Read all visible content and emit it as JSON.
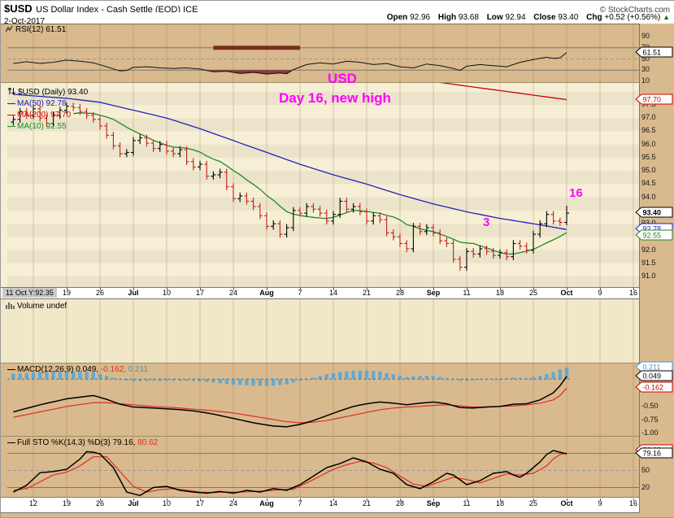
{
  "header": {
    "symbol": "$USD",
    "title": "US Dollar Index - Cash Settle (EOD) ICE",
    "date": "2-Oct-2017",
    "copyright": "© StockCharts.com"
  },
  "quote": {
    "open_label": "Open",
    "open": "92.96",
    "high_label": "High",
    "high": "93.68",
    "low_label": "Low",
    "low": "92.94",
    "close_label": "Close",
    "close": "93.40",
    "chg_label": "Chg",
    "chg": "+0.52 (+0.56%)",
    "direction": "▲"
  },
  "legends": {
    "rsi": "RSI(12) 61.51",
    "price_title": "$USD (Daily) 93.40",
    "ma50": "MA(50) 92.78",
    "ma200": "MA(200) 97.70",
    "ma10": "MA(10) 92.55",
    "volume": "Volume undef",
    "macd_main": "MACD(12,26,9) 0.049,",
    "macd_signal": "-0.162,",
    "macd_hist": "0.211",
    "sto_main": "Full STO %K(14,3) %D(3) 79.16,",
    "sto_d": "80.62"
  },
  "annotations": {
    "usd": "USD",
    "day16": "Day 16, new high",
    "cycle_low": "3",
    "cycle_high": "16",
    "color": "#FF00FF"
  },
  "x_axis": {
    "tooltip": "11 Oct Y:92.35",
    "labels": [
      "12",
      "19",
      "26",
      "Jul",
      "10",
      "17",
      "24",
      "Aug",
      "7",
      "14",
      "21",
      "28",
      "Sep",
      "11",
      "18",
      "25",
      "Oct",
      "9",
      "16"
    ],
    "month_labels": [
      "Jul",
      "Aug",
      "Sep",
      "Oct"
    ]
  },
  "colors": {
    "tan": "#D9BA8E",
    "cream": "#F6EFD5",
    "cream2": "#F1E8C9",
    "up": "#000000",
    "down": "#C41E1E",
    "ma50": "#2222BB",
    "ma200": "#CC0000",
    "ma10": "#1F8B1F",
    "hist": "#66A8CE",
    "hist_zero": "#3377AA",
    "macd_line": "#000000",
    "signal_line": "#D93025",
    "k_line": "#000000",
    "d_line": "#D93025",
    "rsi_line": "#111111",
    "rsi_fill": "#8B3A3A",
    "annotation_bar": "#7B2B23",
    "grid": "rgba(140,100,50,0.30)",
    "level_line": "#777777",
    "mid_dash": "#999999",
    "callout_black": "#000000",
    "callout_red": "#CC0000",
    "callout_blue": "#2222BB",
    "callout_green": "#1F8B1F",
    "callout_hist": "#4D94C2"
  },
  "chart_data": [
    {
      "panel": "rsi",
      "type": "line",
      "indicator": "RSI(12)",
      "last_value": 61.51,
      "yticks": [
        "90",
        "70",
        "50",
        "30",
        "10"
      ],
      "levels": {
        "overbought": 70,
        "midline": 50,
        "oversold": 30
      },
      "points": [
        [
          0,
          42
        ],
        [
          2,
          45
        ],
        [
          4,
          42
        ],
        [
          6,
          44
        ],
        [
          8,
          48
        ],
        [
          10,
          46
        ],
        [
          12,
          43
        ],
        [
          14,
          36
        ],
        [
          16,
          28.5
        ],
        [
          17,
          29.5
        ],
        [
          18,
          35
        ],
        [
          20,
          36
        ],
        [
          22,
          34
        ],
        [
          24,
          33
        ],
        [
          26,
          34
        ],
        [
          28,
          32
        ],
        [
          30,
          27
        ],
        [
          32,
          28
        ],
        [
          34,
          24
        ],
        [
          36,
          26
        ],
        [
          38,
          23
        ],
        [
          40,
          25
        ],
        [
          41,
          23.5
        ],
        [
          42,
          31
        ],
        [
          44,
          40
        ],
        [
          46,
          43
        ],
        [
          48,
          41
        ],
        [
          50,
          46
        ],
        [
          52,
          44
        ],
        [
          54,
          40
        ],
        [
          56,
          42
        ],
        [
          58,
          36
        ],
        [
          60,
          34
        ],
        [
          62,
          41
        ],
        [
          64,
          38
        ],
        [
          66,
          33
        ],
        [
          67,
          29.5
        ],
        [
          68,
          37
        ],
        [
          70,
          40
        ],
        [
          72,
          38
        ],
        [
          74,
          36
        ],
        [
          76,
          44
        ],
        [
          78,
          49
        ],
        [
          80,
          53
        ],
        [
          81,
          51
        ],
        [
          82,
          52
        ],
        [
          83,
          61.5
        ]
      ],
      "annotation_bar": {
        "from_idx": 30,
        "to_idx": 43,
        "level": 70
      },
      "callouts": [
        {
          "text": "61.51",
          "value": 61.51,
          "color_key": "callout_black"
        }
      ]
    },
    {
      "panel": "price",
      "type": "ohlc",
      "symbol": "$USD",
      "timeframe": "Daily",
      "last_value": 93.4,
      "yticks": [
        "97.5",
        "97.0",
        "96.5",
        "96.0",
        "95.5",
        "95.0",
        "94.5",
        "94.0",
        "93.0",
        "92.0",
        "91.5",
        "91.0"
      ],
      "first_open": 96.85,
      "closes": [
        96.95,
        97.25,
        97.1,
        97.35,
        97.0,
        96.8,
        97.1,
        97.3,
        97.45,
        97.4,
        97.25,
        97.1,
        96.95,
        96.7,
        96.35,
        95.95,
        95.65,
        95.7,
        96.15,
        96.25,
        96.05,
        95.85,
        96.0,
        95.75,
        95.65,
        95.8,
        95.35,
        95.15,
        95.25,
        94.8,
        94.85,
        94.95,
        94.4,
        93.95,
        94.05,
        93.85,
        93.65,
        93.3,
        92.9,
        93.0,
        92.6,
        92.85,
        93.5,
        93.4,
        93.65,
        93.55,
        93.4,
        93.1,
        93.35,
        93.85,
        93.55,
        93.65,
        93.45,
        93.1,
        93.3,
        93.15,
        92.65,
        92.5,
        92.25,
        92.05,
        92.9,
        92.7,
        92.85,
        92.65,
        92.35,
        92.25,
        91.65,
        91.35,
        91.95,
        91.85,
        92.05,
        91.95,
        91.8,
        91.9,
        91.75,
        92.25,
        92.15,
        92.0,
        92.6,
        93.0,
        93.35,
        93.1,
        93.05,
        93.4
      ],
      "last_bar": {
        "open": 92.96,
        "high": 93.68,
        "low": 92.94,
        "close": 93.4
      },
      "ma50_points": [
        [
          0,
          97.9
        ],
        [
          8,
          97.75
        ],
        [
          13,
          97.6
        ],
        [
          18,
          97.3
        ],
        [
          23,
          97.0
        ],
        [
          28,
          96.6
        ],
        [
          33,
          96.15
        ],
        [
          38,
          95.7
        ],
        [
          43,
          95.25
        ],
        [
          48,
          94.85
        ],
        [
          53,
          94.5
        ],
        [
          58,
          94.1
        ],
        [
          63,
          93.75
        ],
        [
          68,
          93.45
        ],
        [
          73,
          93.2
        ],
        [
          78,
          93.0
        ],
        [
          83,
          92.78
        ]
      ],
      "ma200_points": [
        [
          64,
          98.35
        ],
        [
          83,
          97.7
        ]
      ],
      "ma10_period": 10,
      "callouts": [
        {
          "text": "97.70",
          "value": 97.7,
          "color_key": "callout_red"
        },
        {
          "text": "93.40",
          "value": 93.4,
          "color_key": "callout_black",
          "bold": true
        },
        {
          "text": "92.78",
          "value": 92.78,
          "color_key": "callout_blue"
        },
        {
          "text": "92.55",
          "value": 92.55,
          "color_key": "callout_green"
        }
      ]
    },
    {
      "panel": "volume",
      "type": "empty",
      "status": "undef"
    },
    {
      "panel": "macd",
      "type": "macd",
      "params": "12,26,9",
      "last_values": {
        "macd": 0.049,
        "signal": -0.162,
        "histogram": 0.211
      },
      "yticks": [
        "-0.50",
        "-0.75",
        "-1.00"
      ],
      "macd_points": [
        [
          0,
          -0.6
        ],
        [
          4,
          -0.47
        ],
        [
          8,
          -0.36
        ],
        [
          12,
          -0.3
        ],
        [
          14,
          -0.37
        ],
        [
          16,
          -0.46
        ],
        [
          18,
          -0.51
        ],
        [
          21,
          -0.53
        ],
        [
          24,
          -0.55
        ],
        [
          27,
          -0.58
        ],
        [
          30,
          -0.64
        ],
        [
          33,
          -0.72
        ],
        [
          36,
          -0.8
        ],
        [
          39,
          -0.86
        ],
        [
          41,
          -0.875
        ],
        [
          43,
          -0.83
        ],
        [
          45,
          -0.76
        ],
        [
          47,
          -0.67
        ],
        [
          49,
          -0.58
        ],
        [
          51,
          -0.5
        ],
        [
          53,
          -0.45
        ],
        [
          55,
          -0.42
        ],
        [
          57,
          -0.44
        ],
        [
          59,
          -0.47
        ],
        [
          61,
          -0.44
        ],
        [
          63,
          -0.42
        ],
        [
          65,
          -0.45
        ],
        [
          67,
          -0.52
        ],
        [
          69,
          -0.53
        ],
        [
          71,
          -0.51
        ],
        [
          73,
          -0.5
        ],
        [
          75,
          -0.46
        ],
        [
          77,
          -0.45
        ],
        [
          79,
          -0.38
        ],
        [
          81,
          -0.25
        ],
        [
          82,
          -0.12
        ],
        [
          83,
          0.049
        ]
      ],
      "signal_points": [
        [
          0,
          -0.7
        ],
        [
          4,
          -0.6
        ],
        [
          8,
          -0.5
        ],
        [
          12,
          -0.43
        ],
        [
          14,
          -0.43
        ],
        [
          16,
          -0.45
        ],
        [
          18,
          -0.47
        ],
        [
          21,
          -0.5
        ],
        [
          24,
          -0.52
        ],
        [
          27,
          -0.55
        ],
        [
          30,
          -0.58
        ],
        [
          33,
          -0.62
        ],
        [
          36,
          -0.68
        ],
        [
          39,
          -0.74
        ],
        [
          41,
          -0.78
        ],
        [
          43,
          -0.8
        ],
        [
          45,
          -0.79
        ],
        [
          47,
          -0.76
        ],
        [
          49,
          -0.71
        ],
        [
          51,
          -0.66
        ],
        [
          53,
          -0.61
        ],
        [
          55,
          -0.56
        ],
        [
          57,
          -0.53
        ],
        [
          59,
          -0.51
        ],
        [
          61,
          -0.5
        ],
        [
          63,
          -0.48
        ],
        [
          65,
          -0.47
        ],
        [
          67,
          -0.49
        ],
        [
          69,
          -0.51
        ],
        [
          71,
          -0.51
        ],
        [
          73,
          -0.5
        ],
        [
          75,
          -0.49
        ],
        [
          77,
          -0.47
        ],
        [
          79,
          -0.44
        ],
        [
          81,
          -0.38
        ],
        [
          82,
          -0.3
        ],
        [
          83,
          -0.162
        ]
      ],
      "callouts": [
        {
          "text": "0.211",
          "value": 0.211,
          "color_key": "callout_hist"
        },
        {
          "text": "0.049",
          "value": 0.049,
          "color_key": "callout_black"
        },
        {
          "text": "-0.162",
          "value": -0.162,
          "color_key": "callout_red"
        }
      ]
    },
    {
      "panel": "sto",
      "type": "lines",
      "params": "%K(14,3) %D(3)",
      "last_values": {
        "k": 79.16,
        "d": 80.62
      },
      "yticks": [
        "50",
        "20"
      ],
      "levels": [
        80,
        50,
        20
      ],
      "k_points": [
        [
          0,
          12
        ],
        [
          2,
          24
        ],
        [
          4,
          46
        ],
        [
          6,
          48
        ],
        [
          8,
          52
        ],
        [
          10,
          70
        ],
        [
          11,
          83
        ],
        [
          12,
          82
        ],
        [
          13,
          79
        ],
        [
          15,
          55
        ],
        [
          17,
          12
        ],
        [
          19,
          6
        ],
        [
          21,
          20
        ],
        [
          23,
          22
        ],
        [
          25,
          15
        ],
        [
          27,
          12
        ],
        [
          29,
          10
        ],
        [
          31,
          13
        ],
        [
          33,
          10
        ],
        [
          35,
          15
        ],
        [
          37,
          12
        ],
        [
          39,
          18
        ],
        [
          41,
          15
        ],
        [
          43,
          25
        ],
        [
          45,
          40
        ],
        [
          47,
          55
        ],
        [
          49,
          62
        ],
        [
          51,
          72
        ],
        [
          53,
          65
        ],
        [
          55,
          52
        ],
        [
          57,
          45
        ],
        [
          59,
          25
        ],
        [
          61,
          18
        ],
        [
          63,
          30
        ],
        [
          65,
          45
        ],
        [
          66,
          42
        ],
        [
          68,
          25
        ],
        [
          70,
          32
        ],
        [
          72,
          45
        ],
        [
          74,
          48
        ],
        [
          75,
          42
        ],
        [
          76,
          38
        ],
        [
          77,
          45
        ],
        [
          79,
          65
        ],
        [
          80,
          78
        ],
        [
          81,
          85
        ],
        [
          82,
          82
        ],
        [
          83,
          79.16
        ]
      ],
      "d_points": [
        [
          0,
          15
        ],
        [
          2,
          18
        ],
        [
          4,
          30
        ],
        [
          6,
          42
        ],
        [
          8,
          47
        ],
        [
          10,
          58
        ],
        [
          12,
          74
        ],
        [
          14,
          74
        ],
        [
          16,
          48
        ],
        [
          18,
          22
        ],
        [
          20,
          12
        ],
        [
          22,
          16
        ],
        [
          24,
          18
        ],
        [
          26,
          15
        ],
        [
          28,
          12
        ],
        [
          30,
          11
        ],
        [
          32,
          12
        ],
        [
          34,
          12
        ],
        [
          36,
          13
        ],
        [
          38,
          14
        ],
        [
          40,
          16
        ],
        [
          42,
          17
        ],
        [
          44,
          28
        ],
        [
          46,
          40
        ],
        [
          48,
          52
        ],
        [
          50,
          60
        ],
        [
          52,
          66
        ],
        [
          54,
          63
        ],
        [
          56,
          55
        ],
        [
          58,
          40
        ],
        [
          60,
          26
        ],
        [
          62,
          22
        ],
        [
          64,
          30
        ],
        [
          66,
          38
        ],
        [
          68,
          34
        ],
        [
          70,
          28
        ],
        [
          72,
          36
        ],
        [
          74,
          44
        ],
        [
          76,
          42
        ],
        [
          78,
          45
        ],
        [
          80,
          58
        ],
        [
          81,
          70
        ],
        [
          82,
          78
        ],
        [
          83,
          80.62
        ]
      ],
      "callouts": [
        {
          "text": "80.62",
          "value": 80.62,
          "color_key": "callout_red",
          "behind": true
        },
        {
          "text": "79.16",
          "value": 79.16,
          "color_key": "callout_black"
        }
      ]
    }
  ]
}
